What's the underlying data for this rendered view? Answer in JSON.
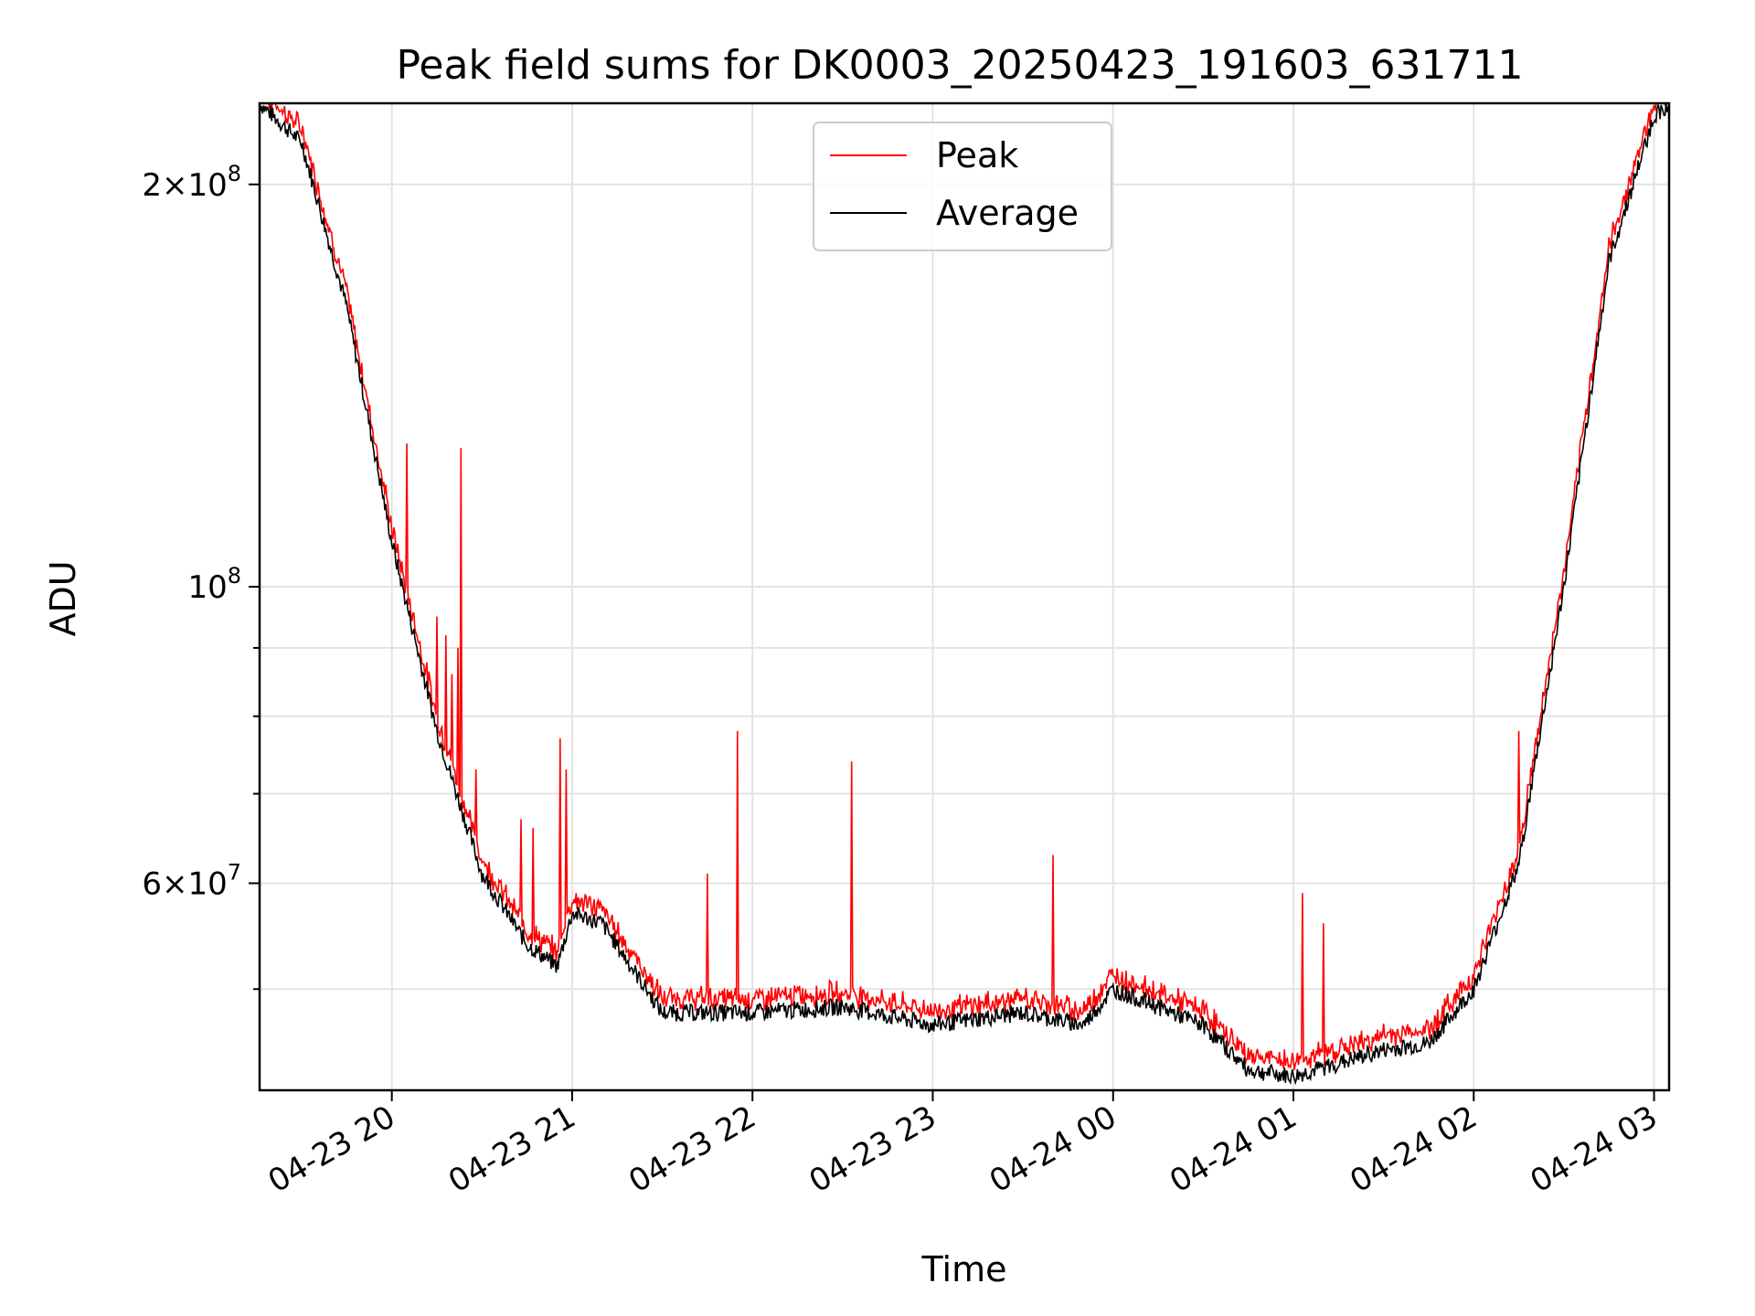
{
  "chart_data": {
    "type": "line",
    "title": "Peak field sums for DK0003_20250423_191603_631711",
    "xlabel": "Time",
    "ylabel": "ADU",
    "yscale": "log",
    "ylim": [
      42000000,
      230000000
    ],
    "xlim": [
      "2025-04-23 19:16",
      "2025-04-24 03:05"
    ],
    "x_ticks": [
      "04-23 20",
      "04-23 21",
      "04-23 22",
      "04-23 23",
      "04-24 00",
      "04-24 01",
      "04-24 02",
      "04-24 03"
    ],
    "y_tick_labels": [
      {
        "value": 200000000,
        "mantissa": "2",
        "exponent": "8"
      },
      {
        "value": 100000000,
        "mantissa": "",
        "exponent": "8"
      },
      {
        "value": 60000000,
        "mantissa": "6",
        "exponent": "7"
      }
    ],
    "grid": true,
    "legend_position": "upper center",
    "series": [
      {
        "name": "Peak",
        "color": "#ff0000"
      },
      {
        "name": "Average",
        "color": "#000000"
      }
    ],
    "x": [
      "19:16",
      "19:30",
      "19:45",
      "20:00",
      "20:15",
      "20:30",
      "20:45",
      "20:55",
      "21:00",
      "21:10",
      "21:30",
      "22:00",
      "22:30",
      "23:00",
      "23:30",
      "23:50",
      "00:00",
      "00:15",
      "00:30",
      "00:45",
      "01:00",
      "01:15",
      "01:30",
      "01:45",
      "02:00",
      "02:15",
      "02:30",
      "02:45",
      "03:00",
      "03:05"
    ],
    "baseline_values": [
      230000000,
      215000000,
      162000000,
      108000000,
      78000000,
      61000000,
      54000000,
      52000000,
      57000000,
      56000000,
      48000000,
      48000000,
      48500000,
      47000000,
      48000000,
      47000000,
      50000000,
      48500000,
      47000000,
      43500000,
      43000000,
      44000000,
      45000000,
      45500000,
      50000000,
      62000000,
      100000000,
      175000000,
      225000000,
      230000000
    ],
    "peak_spikes": [
      {
        "x": "20:05",
        "value": 128000000
      },
      {
        "x": "20:23",
        "value": 127000000
      },
      {
        "x": "20:15",
        "value": 95000000
      },
      {
        "x": "20:18",
        "value": 92000000
      },
      {
        "x": "20:20",
        "value": 86000000
      },
      {
        "x": "20:22",
        "value": 90000000
      },
      {
        "x": "20:28",
        "value": 73000000
      },
      {
        "x": "20:43",
        "value": 67000000
      },
      {
        "x": "20:47",
        "value": 66000000
      },
      {
        "x": "20:56",
        "value": 77000000
      },
      {
        "x": "20:58",
        "value": 73000000
      },
      {
        "x": "21:45",
        "value": 61000000
      },
      {
        "x": "21:55",
        "value": 78000000
      },
      {
        "x": "22:33",
        "value": 74000000
      },
      {
        "x": "23:40",
        "value": 63000000
      },
      {
        "x": "01:03",
        "value": 59000000
      },
      {
        "x": "01:10",
        "value": 56000000
      },
      {
        "x": "02:15",
        "value": 78000000
      }
    ]
  }
}
